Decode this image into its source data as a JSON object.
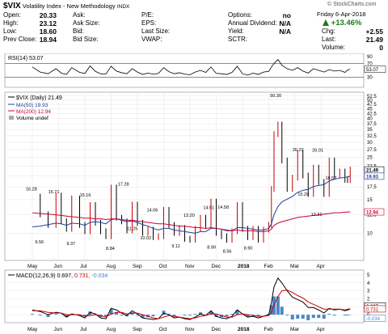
{
  "header": {
    "symbol": "$VIX",
    "name": "Volatility Index - New Methodology",
    "exchange": "INDX",
    "copyright": "© StockCharts.com",
    "date": "Friday  6-Apr-2018",
    "pct_change": "+13.46%",
    "col1": [
      {
        "label": "Open:",
        "value": "20.33"
      },
      {
        "label": "High:",
        "value": "23.12"
      },
      {
        "label": "Low:",
        "value": "18.60"
      },
      {
        "label": "Prev Close:",
        "value": "18.94"
      }
    ],
    "col2": [
      {
        "label": "Ask:",
        "value": ""
      },
      {
        "label": "Ask Size:",
        "value": ""
      },
      {
        "label": "Bid:",
        "value": ""
      },
      {
        "label": "Bid Size:",
        "value": ""
      }
    ],
    "col3": [
      {
        "label": "P/E:",
        "value": ""
      },
      {
        "label": "EPS:",
        "value": ""
      },
      {
        "label": "Last Size:",
        "value": ""
      },
      {
        "label": "VWAP:",
        "value": ""
      }
    ],
    "col4": [
      {
        "label": "Options:",
        "value": "no"
      },
      {
        "label": "Annual Dividend:",
        "value": "N/A"
      },
      {
        "label": "Yield:",
        "value": "N/A"
      },
      {
        "label": "SCTR:",
        "value": ""
      }
    ],
    "col5": [
      {
        "label": "Chg:",
        "value": "+2.55"
      },
      {
        "label": "Last:",
        "value": "21.49"
      },
      {
        "label": "Volume:",
        "value": "0"
      }
    ]
  },
  "colors": {
    "up": "#000000",
    "down": "#cc0000",
    "ma50": "#1f3f99",
    "ma200": "#cc0033",
    "pct_green": "#1a7a1a",
    "hist": "#4a86c8",
    "signal": "#cc0000"
  },
  "chart_data": [
    {
      "type": "line",
      "legend": "RSI(14) 53.07",
      "ylim": [
        0,
        100
      ],
      "ticks": [
        30,
        50,
        70,
        90
      ],
      "levels": [
        30,
        70
      ],
      "last_value_label": "53.07",
      "x_month_index": [
        0,
        0.3,
        0.6,
        0.9,
        1.1,
        1.3,
        1.5,
        1.8,
        2.0,
        2.2,
        2.4,
        2.6,
        2.8,
        3.0,
        3.2,
        3.4,
        3.6,
        3.8,
        4.0,
        4.2,
        4.4,
        4.6,
        4.8,
        5.0,
        5.2,
        5.4,
        5.6,
        5.8,
        6.0,
        6.2,
        6.4,
        6.6,
        6.8,
        7.0,
        7.2,
        7.4,
        7.6,
        7.8,
        8.0,
        8.2,
        8.4,
        8.6,
        8.8,
        9.0,
        9.1,
        9.2,
        9.35,
        9.5,
        9.7,
        9.9,
        10.1,
        10.3,
        10.5,
        10.7,
        10.9,
        11.1,
        11.3,
        11.5,
        11.7,
        11.9,
        12.0,
        12.1
      ],
      "values": [
        60,
        45,
        40,
        55,
        42,
        38,
        58,
        44,
        41,
        63,
        47,
        40,
        39,
        62,
        48,
        43,
        40,
        55,
        45,
        38,
        42,
        39,
        41,
        58,
        46,
        40,
        43,
        39,
        37,
        45,
        50,
        44,
        60,
        41,
        40,
        38,
        44,
        62,
        40,
        36,
        42,
        38,
        45,
        47,
        60,
        70,
        82,
        65,
        55,
        50,
        58,
        48,
        42,
        55,
        50,
        45,
        52,
        48,
        50,
        44,
        51,
        53
      ]
    },
    {
      "type": "line",
      "legend_title": "$VIX (Daily) 21.49",
      "legend_ma50": "MA(50) 19.93",
      "legend_ma200": "MA(200) 12.94",
      "legend_volume": "Volume undef",
      "scale": "log",
      "ylim": [
        7.2,
        55
      ],
      "y_ticks": [
        10,
        12.5,
        15,
        17.5,
        20,
        22.5,
        25,
        27.5,
        30,
        32.5,
        35,
        37.5,
        40,
        42.5,
        45,
        47.5,
        50,
        52.5
      ],
      "x_axis": {
        "labels": [
          "May",
          "Jun",
          "Jul",
          "Aug",
          "Sep",
          "Oct",
          "Nov",
          "Dec",
          "2018",
          "Feb",
          "Mar",
          "Apr"
        ],
        "bold": "2018"
      },
      "x_month_index": [
        0,
        0.3,
        0.6,
        0.9,
        1.1,
        1.3,
        1.5,
        1.8,
        2.0,
        2.2,
        2.4,
        2.6,
        2.8,
        3.0,
        3.2,
        3.4,
        3.6,
        3.8,
        4.0,
        4.2,
        4.4,
        4.6,
        4.8,
        5.0,
        5.2,
        5.4,
        5.6,
        5.8,
        6.0,
        6.2,
        6.4,
        6.6,
        6.8,
        7.0,
        7.2,
        7.4,
        7.6,
        7.8,
        8.0,
        8.2,
        8.4,
        8.6,
        8.8,
        9.0,
        9.1,
        9.2,
        9.35,
        9.5,
        9.7,
        9.9,
        10.1,
        10.3,
        10.5,
        10.7,
        10.9,
        11.1,
        11.3,
        11.5,
        11.7,
        11.9,
        12.0,
        12.1
      ],
      "close": [
        15.5,
        12.5,
        11.0,
        15.7,
        11.5,
        10.5,
        15.16,
        11.0,
        10.2,
        14.0,
        11.3,
        10.2,
        9.6,
        17.28,
        12.0,
        11.5,
        10.3,
        14.06,
        11.3,
        10.0,
        10.4,
        9.5,
        9.6,
        13.2,
        11.0,
        10.0,
        10.6,
        9.3,
        9.2,
        10.5,
        12.0,
        11.0,
        14.58,
        10.0,
        9.6,
        9.2,
        10.2,
        14.0,
        10.5,
        9.5,
        10.5,
        9.2,
        10.4,
        11.0,
        17.0,
        33.0,
        37.0,
        24.0,
        17.0,
        19.5,
        26.22,
        20.0,
        16.0,
        22.0,
        18.5,
        16.0,
        24.0,
        20.0,
        21.0,
        19.0,
        18.94,
        21.49
      ],
      "ma50": [
        10.8,
        10.9,
        11.1,
        11.3,
        11.2,
        11.0,
        11.3,
        11.2,
        11.0,
        11.4,
        11.5,
        11.4,
        11.2,
        11.8,
        11.9,
        11.7,
        11.5,
        11.6,
        11.4,
        11.1,
        10.9,
        10.6,
        10.4,
        10.6,
        10.6,
        10.4,
        10.3,
        10.2,
        10.1,
        10.0,
        10.2,
        10.2,
        10.6,
        10.6,
        10.5,
        10.3,
        10.3,
        10.7,
        10.7,
        10.6,
        10.5,
        10.4,
        10.4,
        10.6,
        11.2,
        12.5,
        13.8,
        14.6,
        15.1,
        15.6,
        16.4,
        16.8,
        17.0,
        17.6,
        17.8,
        18.0,
        18.8,
        19.2,
        19.5,
        19.6,
        19.8,
        19.93
      ],
      "ma200": [
        12.8,
        12.7,
        12.6,
        12.5,
        12.4,
        12.3,
        12.2,
        12.1,
        12.0,
        12.0,
        11.9,
        11.9,
        11.8,
        11.9,
        11.9,
        11.8,
        11.7,
        11.7,
        11.6,
        11.5,
        11.4,
        11.3,
        11.2,
        11.2,
        11.1,
        11.0,
        10.9,
        10.9,
        10.8,
        10.7,
        10.7,
        10.6,
        10.7,
        10.6,
        10.5,
        10.4,
        10.3,
        10.4,
        10.3,
        10.3,
        10.3,
        10.2,
        10.2,
        10.3,
        10.5,
        11.0,
        11.3,
        11.5,
        11.7,
        11.9,
        12.1,
        12.2,
        12.3,
        12.4,
        12.5,
        12.6,
        12.7,
        12.8,
        12.8,
        12.9,
        12.92,
        12.94
      ],
      "annotations": [
        {
          "text": "16.28",
          "x": 0.0,
          "y": 16.28
        },
        {
          "text": "9.56",
          "x": 0.35,
          "y": 9.56
        },
        {
          "text": "15.71",
          "x": 0.85,
          "y": 15.71
        },
        {
          "text": "9.37",
          "x": 1.55,
          "y": 9.37
        },
        {
          "text": "15.16",
          "x": 2.05,
          "y": 15.16
        },
        {
          "text": "8.84",
          "x": 3.05,
          "y": 8.84
        },
        {
          "text": "17.28",
          "x": 3.5,
          "y": 17.28
        },
        {
          "text": "11.25",
          "x": 3.85,
          "y": 11.25
        },
        {
          "text": "10.02",
          "x": 4.35,
          "y": 10.02
        },
        {
          "text": "14.06",
          "x": 4.6,
          "y": 14.06
        },
        {
          "text": "9.11",
          "x": 5.55,
          "y": 9.11
        },
        {
          "text": "13.20",
          "x": 6.0,
          "y": 13.2
        },
        {
          "text": "14.51",
          "x": 6.75,
          "y": 14.51
        },
        {
          "text": "8.99",
          "x": 6.9,
          "y": 8.99
        },
        {
          "text": "14.58",
          "x": 7.3,
          "y": 14.58
        },
        {
          "text": "8.56",
          "x": 7.5,
          "y": 8.56
        },
        {
          "text": "8.90",
          "x": 8.3,
          "y": 8.9
        },
        {
          "text": "50.30",
          "x": 9.3,
          "y": 50.3
        },
        {
          "text": "26.22",
          "x": 10.15,
          "y": 26.22
        },
        {
          "text": "15.29",
          "x": 10.35,
          "y": 15.29
        },
        {
          "text": "26.01",
          "x": 10.9,
          "y": 26.01
        },
        {
          "text": "13.31",
          "x": 10.85,
          "y": 13.31
        },
        {
          "text": "18.57",
          "x": 11.4,
          "y": 18.57
        }
      ],
      "right_labels": [
        {
          "text": "21.49",
          "value": 21.49
        },
        {
          "text": "19.93",
          "value": 19.93
        },
        {
          "text": "12.94",
          "value": 12.94
        }
      ]
    },
    {
      "type": "line",
      "legend_title": "MACD(12,26,9)",
      "legend_macd": "0.697,",
      "legend_signal": "0.731,",
      "legend_hist": "-0.034",
      "ylim": [
        -1.0,
        5.6
      ],
      "ticks": [
        0,
        1,
        2,
        3,
        4,
        5
      ],
      "right_labels": [
        {
          "text": "0.697",
          "value": 0.697
        },
        {
          "text": "0.731",
          "value": 0.731
        },
        {
          "text": "-0.034",
          "value": -0.034
        }
      ],
      "x_month_index": [
        0,
        0.3,
        0.6,
        0.9,
        1.1,
        1.3,
        1.5,
        1.8,
        2.0,
        2.2,
        2.4,
        2.6,
        2.8,
        3.0,
        3.2,
        3.4,
        3.6,
        3.8,
        4.0,
        4.2,
        4.4,
        4.6,
        4.8,
        5.0,
        5.2,
        5.4,
        5.6,
        5.8,
        6.0,
        6.2,
        6.4,
        6.6,
        6.8,
        7.0,
        7.2,
        7.4,
        7.6,
        7.8,
        8.0,
        8.2,
        8.4,
        8.6,
        8.8,
        9.0,
        9.1,
        9.2,
        9.35,
        9.5,
        9.7,
        9.9,
        10.1,
        10.3,
        10.5,
        10.7,
        10.9,
        11.1,
        11.3,
        11.5,
        11.7,
        11.9,
        12.0,
        12.1
      ],
      "macd": [
        0.6,
        0.4,
        0.0,
        0.3,
        0.2,
        -0.3,
        0.1,
        -0.1,
        -0.4,
        0.3,
        0.1,
        -0.4,
        -0.5,
        0.8,
        0.6,
        0.2,
        -0.1,
        0.5,
        0.1,
        -0.4,
        -0.5,
        -0.6,
        -0.5,
        0.2,
        0.0,
        -0.4,
        -0.3,
        -0.5,
        -0.6,
        -0.3,
        0.1,
        -0.1,
        0.5,
        -0.2,
        -0.4,
        -0.5,
        -0.2,
        0.6,
        0.1,
        -0.3,
        -0.2,
        -0.4,
        -0.2,
        0.0,
        1.5,
        3.5,
        4.6,
        4.0,
        3.0,
        2.2,
        1.9,
        1.6,
        0.9,
        0.9,
        0.6,
        0.2,
        0.8,
        0.6,
        0.7,
        0.5,
        0.6,
        0.697
      ],
      "signal": [
        0.5,
        0.5,
        0.3,
        0.2,
        0.2,
        0.0,
        0.0,
        0.0,
        -0.2,
        -0.1,
        0.0,
        -0.1,
        -0.3,
        0.1,
        0.3,
        0.3,
        0.1,
        0.2,
        0.2,
        0.0,
        -0.2,
        -0.4,
        -0.5,
        -0.3,
        -0.1,
        -0.2,
        -0.3,
        -0.4,
        -0.5,
        -0.4,
        -0.2,
        -0.1,
        0.1,
        0.1,
        -0.1,
        -0.3,
        -0.3,
        0.0,
        0.1,
        0.0,
        -0.1,
        -0.2,
        -0.2,
        -0.1,
        0.3,
        1.2,
        2.3,
        3.0,
        3.1,
        2.8,
        2.4,
        2.1,
        1.6,
        1.3,
        1.0,
        0.7,
        0.7,
        0.7,
        0.7,
        0.6,
        0.7,
        0.731
      ]
    }
  ]
}
